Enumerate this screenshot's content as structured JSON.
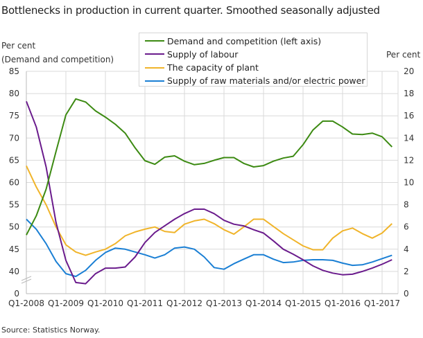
{
  "chart_data": {
    "type": "line",
    "title": "Bottlenecks in production in current quarter. Smoothed seasonally adjusted",
    "ylabel_left": "Per cent\n(Demand  and competition)",
    "ylabel_left_lines": [
      "Per cent",
      "(Demand  and competition)"
    ],
    "ylabel_right": "Per cent",
    "left_axis": {
      "range": [
        40,
        85
      ],
      "ticks": [
        "0",
        "40",
        "45",
        "50",
        "55",
        "60",
        "65",
        "70",
        "75",
        "80",
        "85"
      ],
      "broken": true
    },
    "right_axis": {
      "range": [
        0,
        20
      ],
      "ticks": [
        "0",
        "2",
        "4",
        "6",
        "8",
        "10",
        "12",
        "14",
        "16",
        "18",
        "20"
      ]
    },
    "x_tick_labels": [
      "Q1-2008",
      "Q1-2009",
      "Q1-2010",
      "Q1-2011",
      "Q1-2012",
      "Q1-2013",
      "Q1-2014",
      "Q1-2015",
      "Q1-2016",
      "Q1-2017"
    ],
    "x_range": [
      "Q1-2008",
      "Q2-2017"
    ],
    "grid": true,
    "legend_position": "top-center",
    "series": [
      {
        "name": "Demand and competition (left axis)",
        "axis": "left",
        "color": "#3c8a12",
        "values": [
          48.2,
          52.5,
          58.5,
          67,
          75.2,
          78.8,
          78.1,
          76.1,
          74.7,
          73.1,
          71.1,
          67.8,
          64.9,
          64.1,
          65.7,
          66.0,
          64.8,
          64.0,
          64.3,
          65.0,
          65.6,
          65.6,
          64.3,
          63.5,
          63.8,
          64.8,
          65.5,
          65.9,
          68.5,
          71.8,
          73.8,
          73.8,
          72.5,
          70.9,
          70.8,
          71.1,
          70.3,
          68.0
        ]
      },
      {
        "name": "Supply of labour",
        "axis": "right",
        "color": "#6a1b8c",
        "values": [
          17.3,
          15.0,
          11.4,
          6.4,
          3.0,
          1.0,
          0.9,
          1.8,
          2.3,
          2.3,
          2.4,
          3.3,
          4.6,
          5.5,
          6.1,
          6.7,
          7.2,
          7.6,
          7.6,
          7.2,
          6.6,
          6.25,
          6.1,
          5.75,
          5.45,
          4.75,
          4.0,
          3.55,
          3.05,
          2.5,
          2.1,
          1.85,
          1.7,
          1.75,
          2.0,
          2.3,
          2.65,
          3.05
        ]
      },
      {
        "name": "The capacity of plant",
        "axis": "right",
        "color": "#f0b42a",
        "values": [
          11.5,
          9.6,
          8.0,
          6.0,
          4.4,
          3.75,
          3.45,
          3.75,
          4.0,
          4.5,
          5.2,
          5.55,
          5.8,
          6.0,
          5.6,
          5.5,
          6.25,
          6.55,
          6.7,
          6.3,
          5.75,
          5.35,
          6.0,
          6.7,
          6.7,
          6.05,
          5.4,
          4.85,
          4.3,
          3.95,
          3.95,
          5.0,
          5.65,
          5.9,
          5.4,
          5.0,
          5.45,
          6.3
        ]
      },
      {
        "name": "Supply of raw materials and/or electric power",
        "axis": "right",
        "color": "#1a7fd4",
        "values": [
          6.7,
          5.8,
          4.5,
          2.9,
          1.8,
          1.55,
          2.1,
          3.0,
          3.7,
          4.1,
          4.0,
          3.75,
          3.5,
          3.2,
          3.5,
          4.1,
          4.2,
          4.0,
          3.3,
          2.35,
          2.2,
          2.7,
          3.1,
          3.5,
          3.5,
          3.1,
          2.8,
          2.85,
          3.0,
          3.05,
          3.05,
          3.0,
          2.75,
          2.55,
          2.6,
          2.85,
          3.15,
          3.45
        ]
      }
    ]
  },
  "source": "Source: Statistics Norway."
}
